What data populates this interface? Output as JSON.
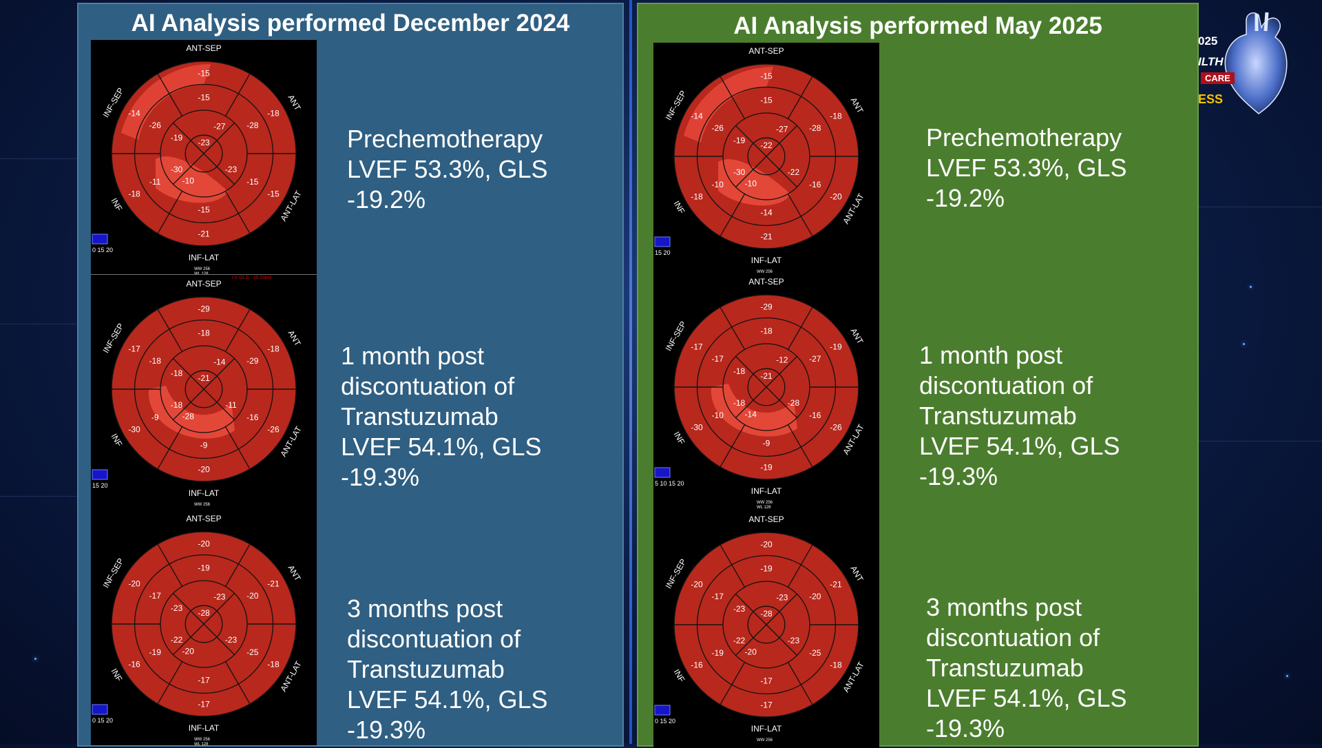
{
  "left_panel": {
    "title": "AI Analysis performed December 2024",
    "color": "#2f5f82",
    "blocks": [
      {
        "lines": [
          "Prechemotherapy",
          "LVEF 53.3%, GLS",
          "-19.2%"
        ]
      },
      {
        "lines": [
          "1 month post",
          "discontuation of",
          "Transtuzumab",
          "LVEF 54.1%, GLS",
          "-19.3%"
        ]
      },
      {
        "lines": [
          "3 months post",
          "discontuation of",
          "Transtuzumab",
          "LVEF 54.1%, GLS",
          "-19.3%"
        ]
      }
    ],
    "maps": [
      {
        "seg": [
          -15,
          -18,
          -15,
          -21,
          -18,
          -14,
          -15,
          -28,
          -15,
          -15,
          -11,
          -26,
          -27,
          -23,
          -10,
          -19,
          -23,
          -30
        ],
        "scale": "0 15 20",
        "ww": "WW 256",
        "wl": "WL 128",
        "gls_note": "LV GLS: -19.33pct",
        "pale": "top"
      },
      {
        "seg": [
          -29,
          -18,
          -26,
          -20,
          -30,
          -17,
          -18,
          -29,
          -16,
          -9,
          -9,
          -18,
          -14,
          -11,
          -28,
          -18,
          -21,
          -18
        ],
        "scale": "15 20",
        "ww": "WW 256",
        "wl": "",
        "gls_note": "",
        "pale": "bottom"
      },
      {
        "seg": [
          -20,
          -21,
          -18,
          -17,
          -16,
          -20,
          -19,
          -20,
          -25,
          -17,
          -19,
          -17,
          -23,
          -23,
          -20,
          -23,
          -28,
          -22
        ],
        "scale": "0 15 20",
        "ww": "WW 256",
        "wl": "WL 128",
        "gls_note": "",
        "pale": "none"
      }
    ]
  },
  "right_panel": {
    "title": "AI Analysis performed May 2025",
    "color": "#4b7d2e",
    "blocks": [
      {
        "lines": [
          "Prechemotherapy",
          "LVEF 53.3%, GLS",
          "-19.2%"
        ]
      },
      {
        "lines": [
          "1 month post",
          "discontuation of",
          "Transtuzumab",
          "LVEF 54.1%, GLS",
          "-19.3%"
        ]
      },
      {
        "lines": [
          "3 months post",
          "discontuation of",
          "Transtuzumab",
          "LVEF 54.1%, GLS",
          "-19.3%"
        ]
      }
    ],
    "maps": [
      {
        "seg": [
          -15,
          -18,
          -20,
          -21,
          -18,
          -14,
          -15,
          -28,
          -16,
          -14,
          -10,
          -26,
          -27,
          -22,
          -10,
          -19,
          -22,
          -30
        ],
        "scale": "15 20",
        "ww": "WW 256",
        "wl": "",
        "gls_note": "",
        "pale": "top"
      },
      {
        "seg": [
          -29,
          -19,
          -26,
          -19,
          -30,
          -17,
          -18,
          -27,
          -16,
          -9,
          -10,
          -17,
          -12,
          -28,
          -14,
          -18,
          -21,
          -18
        ],
        "scale": "5 10 15 20",
        "ww": "WW 256",
        "wl": "WL 128",
        "gls_note": "",
        "pale": "bottom"
      },
      {
        "seg": [
          -20,
          -21,
          -18,
          -17,
          -16,
          -20,
          -19,
          -20,
          -25,
          -17,
          -19,
          -17,
          -23,
          -23,
          -20,
          -23,
          -28,
          -22
        ],
        "scale": "0 15 20",
        "ww": "WW 256",
        "wl": "",
        "gls_note": "",
        "pale": "none"
      }
    ]
  },
  "bullseye_labels": {
    "top": "ANT-SEP",
    "bottom": "INF-LAT",
    "ant": "ANT",
    "ant_lat": "ANT-LAT",
    "inf": "INF",
    "inf_sep": "INF-SEP"
  },
  "logo": {
    "year": "025",
    "line2": "ILTH",
    "line3": "CARE",
    "line4": "ESS"
  }
}
